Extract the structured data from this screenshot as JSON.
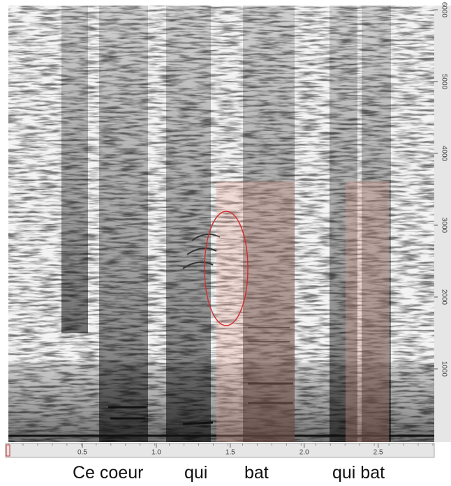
{
  "chart_data": {
    "type": "spectrogram",
    "xlim": [
      0,
      2.87
    ],
    "xticks": [
      0.5,
      {
        "value": 1,
        "label": "1.0"
      },
      1.5,
      {
        "value": 2,
        "label": "2.0"
      },
      2.5
    ],
    "ylim": [
      0,
      6000
    ],
    "yticks": [
      1000,
      2000,
      3000,
      4000,
      5000,
      6000
    ],
    "words": [
      "Ce coeur",
      "qui",
      "bat",
      "qui bat"
    ]
  }
}
